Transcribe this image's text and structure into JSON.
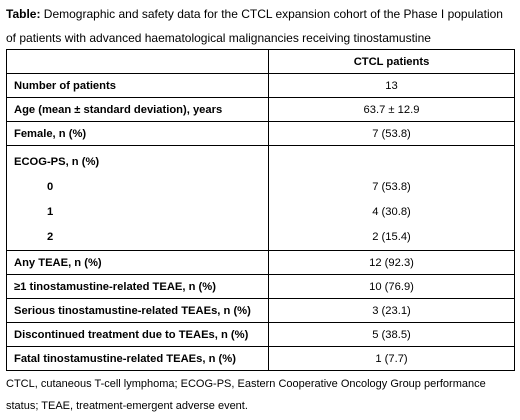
{
  "caption": {
    "label": "Table:",
    "text": " Demographic and safety data for the CTCL expansion cohort of the Phase I population of patients with advanced haematological malignancies receiving tinostamustine"
  },
  "table": {
    "header": [
      "",
      "CTCL patients"
    ],
    "rows": [
      {
        "label": "Number of patients",
        "value": "13"
      },
      {
        "label": "Age (mean ± standard deviation), years",
        "value": "63.7 ± 12.9"
      },
      {
        "label": "Female, n (%)",
        "value": "7 (53.8)"
      }
    ],
    "ecog": {
      "label": "ECOG-PS, n (%)",
      "items": [
        {
          "label": "0",
          "value": "7 (53.8)"
        },
        {
          "label": "1",
          "value": "4 (30.8)"
        },
        {
          "label": "2",
          "value": "2 (15.4)"
        }
      ]
    },
    "safety_rows": [
      {
        "label": "Any TEAE, n (%)",
        "value": "12 (92.3)"
      },
      {
        "label": "≥1 tinostamustine-related TEAE, n (%)",
        "value": "10 (76.9)"
      },
      {
        "label": "Serious tinostamustine-related TEAEs, n (%)",
        "value": "3 (23.1)"
      },
      {
        "label": "Discontinued treatment due to TEAEs, n (%)",
        "value": "5 (38.5)"
      },
      {
        "label": "Fatal tinostamustine-related TEAEs, n (%)",
        "value": "1 (7.7)"
      }
    ]
  },
  "footnote": "CTCL, cutaneous T-cell lymphoma; ECOG-PS, Eastern Cooperative Oncology Group performance status; TEAE, treatment-emergent adverse event."
}
